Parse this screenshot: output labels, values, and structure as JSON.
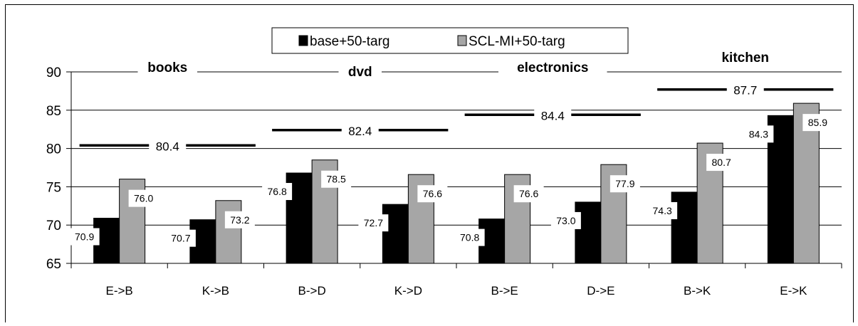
{
  "chart_data": {
    "type": "bar",
    "categories": [
      "E->B",
      "K->B",
      "B->D",
      "K->D",
      "B->E",
      "D->E",
      "B->K",
      "E->K"
    ],
    "series": [
      {
        "name": "base+50-targ",
        "color": "#000000",
        "values": [
          70.9,
          70.7,
          76.8,
          72.7,
          70.8,
          73.0,
          74.3,
          84.3
        ]
      },
      {
        "name": "SCL-MI+50-targ",
        "color": "#a6a6a6",
        "values": [
          76.0,
          73.2,
          78.5,
          76.6,
          76.6,
          77.9,
          80.7,
          85.9
        ]
      }
    ],
    "data_labels": [
      [
        "70.9",
        "70.7",
        "76.8",
        "72.7",
        "70.8",
        "73.0",
        "74.3",
        "84.3"
      ],
      [
        "76.0",
        "73.2",
        "78.5",
        "76.6",
        "76.6",
        "77.9",
        "80.7",
        "85.9"
      ]
    ],
    "groups": [
      {
        "label": "books",
        "categories": [
          "E->B",
          "K->B"
        ],
        "reference": 80.4,
        "reference_label": "80.4"
      },
      {
        "label": "dvd",
        "categories": [
          "B->D",
          "K->D"
        ],
        "reference": 82.4,
        "reference_label": "82.4"
      },
      {
        "label": "electronics",
        "categories": [
          "B->E",
          "D->E"
        ],
        "reference": 84.4,
        "reference_label": "84.4"
      },
      {
        "label": "kitchen",
        "categories": [
          "B->K",
          "E->K"
        ],
        "reference": 87.7,
        "reference_label": "87.7"
      }
    ],
    "ylim": [
      65,
      90
    ],
    "yticks": [
      65,
      70,
      75,
      80,
      85,
      90
    ],
    "ytick_labels": [
      "65",
      "70",
      "75",
      "80",
      "85",
      "90"
    ],
    "grid": true,
    "legend_position": "top-center"
  }
}
